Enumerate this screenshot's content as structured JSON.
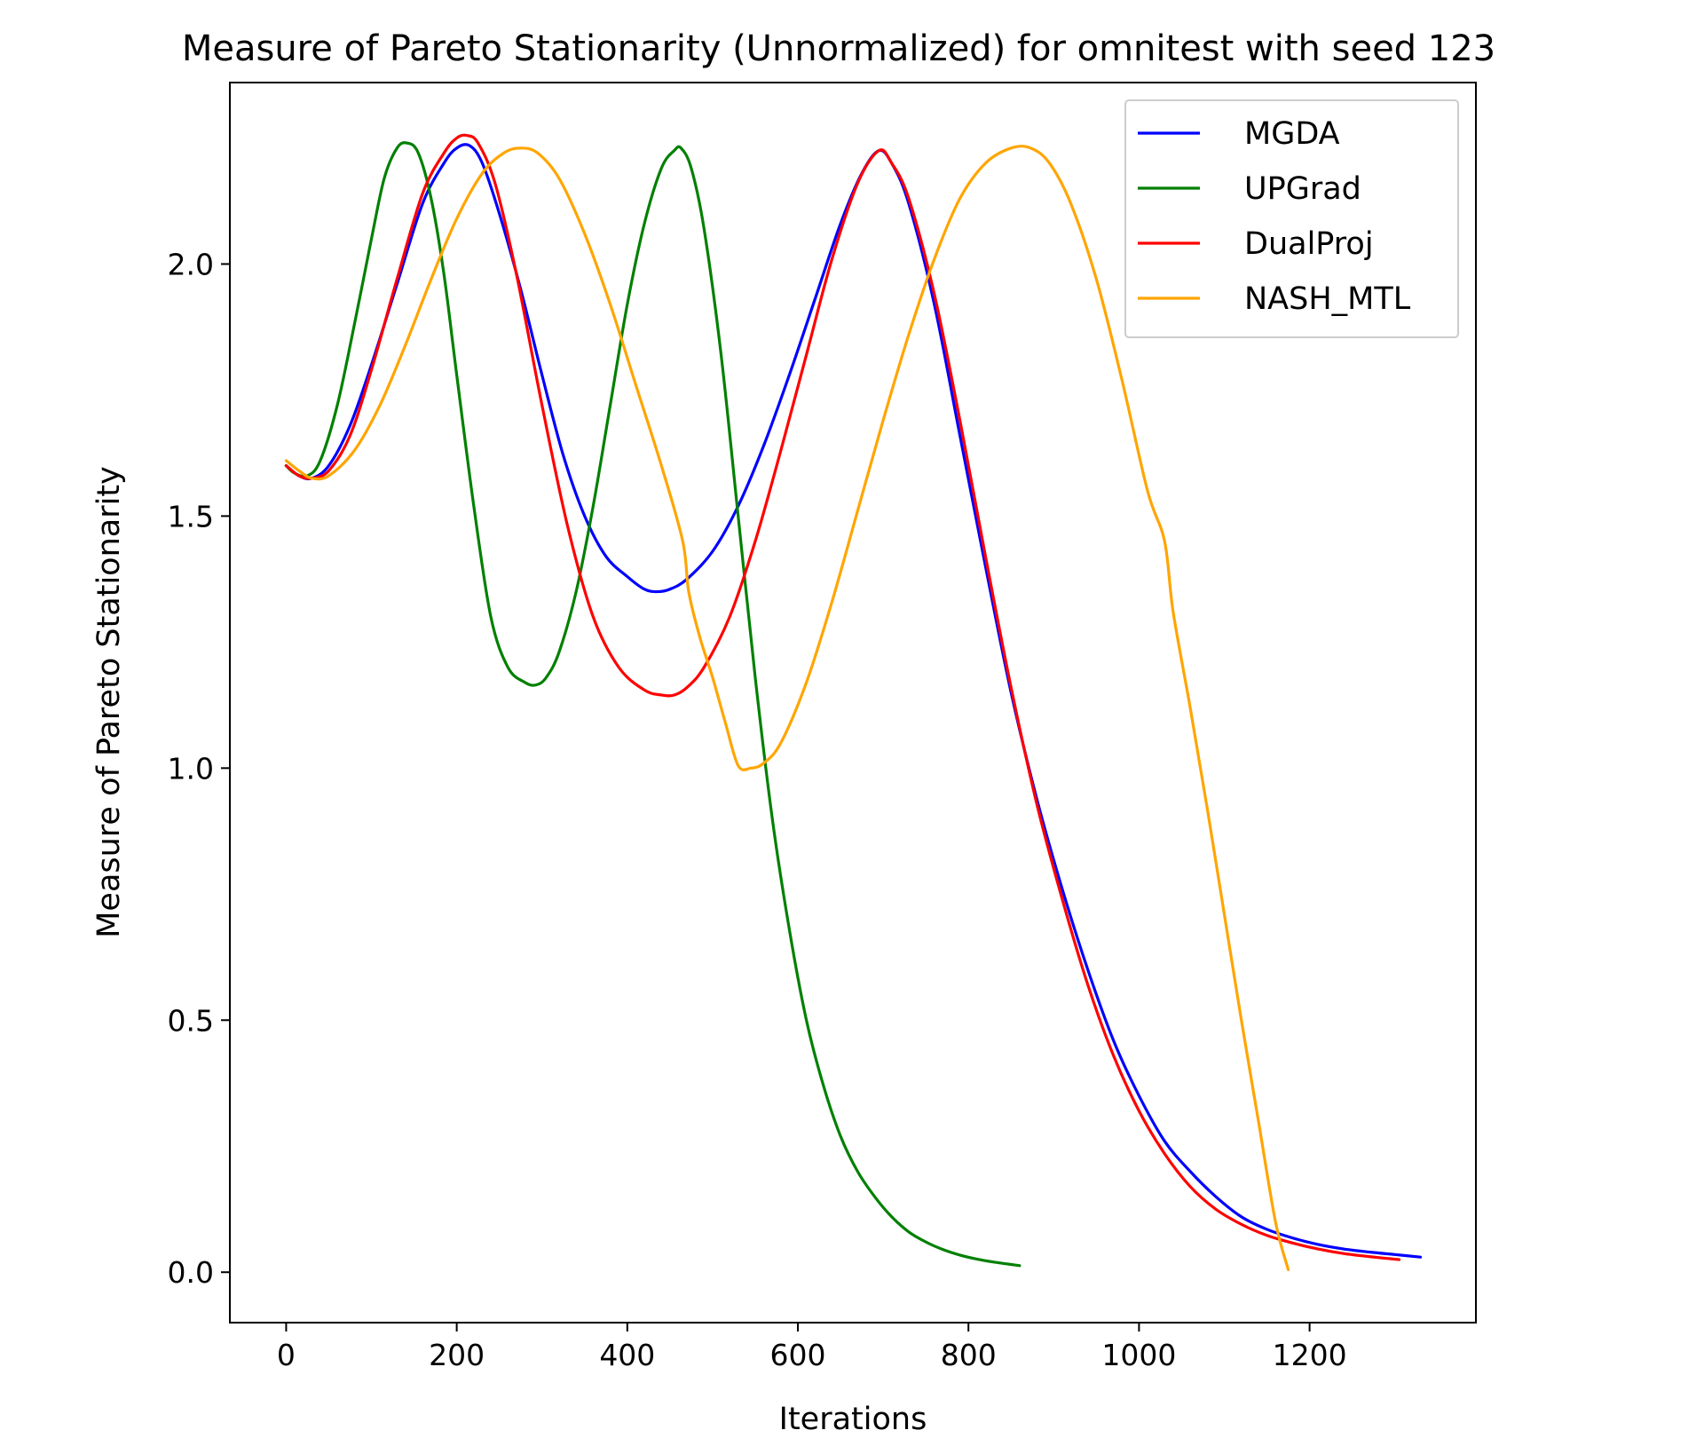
{
  "chart_data": {
    "type": "line",
    "title": "Measure of Pareto Stationarity (Unnormalized) for omnitest with seed 123",
    "xlabel": "Iterations",
    "ylabel": "Measure of Pareto Stationarity",
    "xlim": [
      -66,
      1395
    ],
    "ylim": [
      -0.1,
      2.36
    ],
    "xticks": [
      0,
      200,
      400,
      600,
      800,
      1000,
      1200
    ],
    "xtick_labels": [
      "0",
      "200",
      "400",
      "600",
      "800",
      "1000",
      "1200"
    ],
    "yticks": [
      0.0,
      0.5,
      1.0,
      1.5,
      2.0
    ],
    "ytick_labels": [
      "0.0",
      "0.5",
      "1.0",
      "1.5",
      "2.0"
    ],
    "grid": false,
    "legend_position": "upper right",
    "series": [
      {
        "name": "MGDA",
        "color": "#0000ff",
        "x": [
          0,
          15,
          30,
          50,
          75,
          100,
          130,
          160,
          185,
          200,
          215,
          230,
          250,
          275,
          300,
          325,
          350,
          375,
          400,
          420,
          435,
          450,
          470,
          500,
          530,
          560,
          590,
          620,
          650,
          675,
          695,
          710,
          730,
          760,
          790,
          820,
          850,
          880,
          910,
          940,
          970,
          1000,
          1030,
          1060,
          1090,
          1120,
          1150,
          1180,
          1210,
          1240,
          1270,
          1300,
          1330
        ],
        "y": [
          1.6,
          1.58,
          1.575,
          1.6,
          1.68,
          1.8,
          1.96,
          2.12,
          2.2,
          2.23,
          2.235,
          2.2,
          2.1,
          1.95,
          1.78,
          1.62,
          1.5,
          1.42,
          1.38,
          1.355,
          1.35,
          1.355,
          1.375,
          1.43,
          1.52,
          1.64,
          1.78,
          1.93,
          2.08,
          2.18,
          2.225,
          2.2,
          2.12,
          1.92,
          1.66,
          1.4,
          1.15,
          0.94,
          0.76,
          0.6,
          0.46,
          0.35,
          0.26,
          0.2,
          0.15,
          0.11,
          0.085,
          0.068,
          0.055,
          0.046,
          0.04,
          0.035,
          0.03
        ]
      },
      {
        "name": "UPGrad",
        "color": "#008000",
        "x": [
          0,
          10,
          25,
          40,
          60,
          80,
          100,
          115,
          130,
          142,
          155,
          170,
          185,
          200,
          220,
          240,
          260,
          280,
          293,
          305,
          320,
          340,
          360,
          380,
          400,
          420,
          440,
          455,
          463,
          475,
          490,
          510,
          530,
          550,
          570,
          590,
          610,
          630,
          650,
          670,
          690,
          710,
          730,
          750,
          770,
          790,
          810,
          830,
          860
        ],
        "y": [
          1.6,
          1.585,
          1.58,
          1.61,
          1.72,
          1.88,
          2.05,
          2.17,
          2.23,
          2.24,
          2.22,
          2.13,
          1.98,
          1.78,
          1.52,
          1.3,
          1.2,
          1.17,
          1.165,
          1.18,
          1.23,
          1.35,
          1.52,
          1.72,
          1.92,
          2.08,
          2.19,
          2.225,
          2.23,
          2.19,
          2.07,
          1.82,
          1.5,
          1.18,
          0.9,
          0.68,
          0.5,
          0.37,
          0.27,
          0.2,
          0.15,
          0.11,
          0.08,
          0.06,
          0.045,
          0.034,
          0.026,
          0.02,
          0.013
        ]
      },
      {
        "name": "DualProj",
        "color": "#ff0000",
        "x": [
          0,
          15,
          30,
          50,
          75,
          100,
          130,
          160,
          185,
          200,
          212,
          225,
          245,
          270,
          300,
          330,
          360,
          390,
          420,
          440,
          455,
          470,
          490,
          520,
          550,
          580,
          610,
          640,
          670,
          695,
          710,
          730,
          760,
          790,
          820,
          850,
          880,
          910,
          940,
          970,
          1000,
          1030,
          1060,
          1090,
          1120,
          1150,
          1180,
          1210,
          1240,
          1270,
          1305
        ],
        "y": [
          1.6,
          1.58,
          1.575,
          1.59,
          1.66,
          1.79,
          1.97,
          2.14,
          2.22,
          2.25,
          2.255,
          2.24,
          2.16,
          1.98,
          1.72,
          1.48,
          1.3,
          1.2,
          1.155,
          1.145,
          1.145,
          1.16,
          1.2,
          1.3,
          1.45,
          1.63,
          1.82,
          2.01,
          2.16,
          2.225,
          2.2,
          2.13,
          1.94,
          1.69,
          1.42,
          1.16,
          0.93,
          0.74,
          0.57,
          0.43,
          0.32,
          0.235,
          0.17,
          0.125,
          0.095,
          0.073,
          0.058,
          0.046,
          0.037,
          0.031,
          0.025
        ]
      },
      {
        "name": "NASH_MTL",
        "color": "#ffa500",
        "x": [
          0,
          15,
          30,
          50,
          80,
          110,
          140,
          170,
          200,
          230,
          255,
          275,
          295,
          320,
          350,
          380,
          410,
          440,
          465,
          472,
          485,
          500,
          515,
          530,
          545,
          560,
          580,
          610,
          640,
          670,
          700,
          730,
          760,
          790,
          820,
          850,
          873,
          895,
          920,
          950,
          980,
          1010,
          1030,
          1040,
          1060,
          1080,
          1100,
          1120,
          1140,
          1160,
          1175
        ],
        "y": [
          1.61,
          1.59,
          1.575,
          1.58,
          1.63,
          1.72,
          1.84,
          1.97,
          2.09,
          2.18,
          2.22,
          2.23,
          2.22,
          2.17,
          2.06,
          1.92,
          1.76,
          1.6,
          1.45,
          1.35,
          1.26,
          1.18,
          1.09,
          1.005,
          1.0,
          1.01,
          1.05,
          1.17,
          1.33,
          1.51,
          1.69,
          1.86,
          2.01,
          2.13,
          2.2,
          2.23,
          2.23,
          2.2,
          2.12,
          1.97,
          1.77,
          1.55,
          1.45,
          1.31,
          1.12,
          0.92,
          0.71,
          0.5,
          0.3,
          0.1,
          0.005
        ]
      }
    ]
  }
}
